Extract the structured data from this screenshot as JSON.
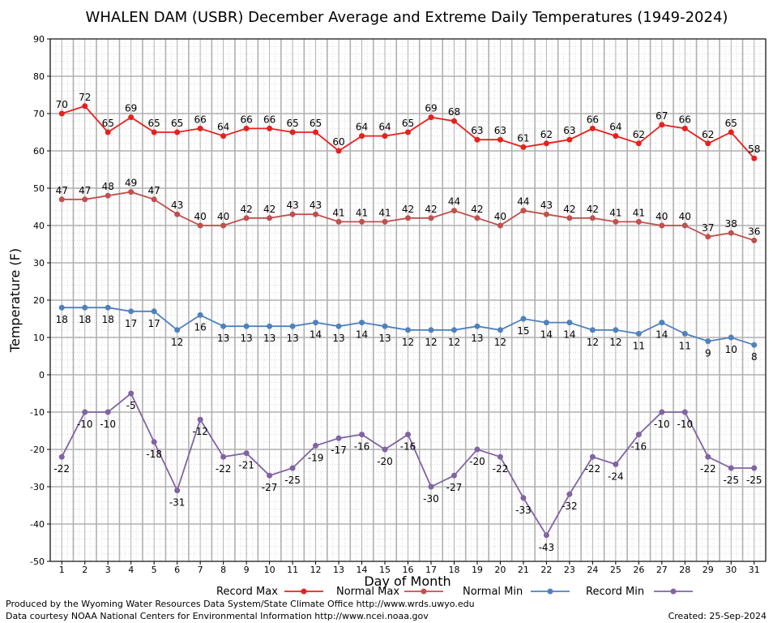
{
  "chart_data": {
    "type": "line",
    "title": "WHALEN DAM (USBR) December Average and Extreme Daily Temperatures (1949-2024)",
    "xlabel": "Day of Month",
    "ylabel": "Temperature (F)",
    "x": [
      1,
      2,
      3,
      4,
      5,
      6,
      7,
      8,
      9,
      10,
      11,
      12,
      13,
      14,
      15,
      16,
      17,
      18,
      19,
      20,
      21,
      22,
      23,
      24,
      25,
      26,
      27,
      28,
      29,
      30,
      31
    ],
    "ylim": [
      -50,
      90
    ],
    "yticks": [
      -50,
      -40,
      -30,
      -20,
      -10,
      0,
      10,
      20,
      30,
      40,
      50,
      60,
      70,
      80,
      90
    ],
    "grid": true,
    "legend_position": "bottom",
    "series": [
      {
        "name": "Record Max",
        "color": "#e8201c",
        "values": [
          70,
          72,
          65,
          69,
          65,
          65,
          66,
          64,
          66,
          66,
          65,
          65,
          60,
          64,
          64,
          65,
          69,
          68,
          63,
          63,
          61,
          62,
          63,
          66,
          64,
          62,
          67,
          66,
          62,
          65,
          58
        ]
      },
      {
        "name": "Normal Max",
        "color": "#c0504d",
        "values": [
          47,
          47,
          48,
          49,
          47,
          43,
          40,
          40,
          42,
          42,
          43,
          43,
          41,
          41,
          41,
          42,
          42,
          44,
          42,
          40,
          44,
          43,
          42,
          42,
          41,
          41,
          40,
          40,
          37,
          38,
          36
        ]
      },
      {
        "name": "Normal Min",
        "color": "#4f81bd",
        "values": [
          18,
          18,
          18,
          17,
          17,
          12,
          16,
          13,
          13,
          13,
          13,
          14,
          13,
          14,
          13,
          12,
          12,
          12,
          13,
          12,
          15,
          14,
          14,
          12,
          12,
          11,
          14,
          11,
          9,
          10,
          8
        ]
      },
      {
        "name": "Record Min",
        "color": "#8064a2",
        "values": [
          -22,
          -10,
          -10,
          -5,
          -18,
          -31,
          -12,
          -22,
          -21,
          -27,
          -25,
          -19,
          -17,
          -16,
          -20,
          -16,
          -30,
          -27,
          -20,
          -22,
          -33,
          -43,
          -32,
          -22,
          -24,
          -16,
          -10,
          -10,
          -22,
          -25,
          -25
        ]
      }
    ]
  },
  "footer": {
    "produced_by": "Produced by the Wyoming Water Resources Data System/State Climate Office http://www.wrds.uwyo.edu",
    "data_courtesy": "Data courtesy NOAA National Centers for Environmental Information http://www.ncei.noaa.gov",
    "created": "Created: 25-Sep-2024"
  }
}
